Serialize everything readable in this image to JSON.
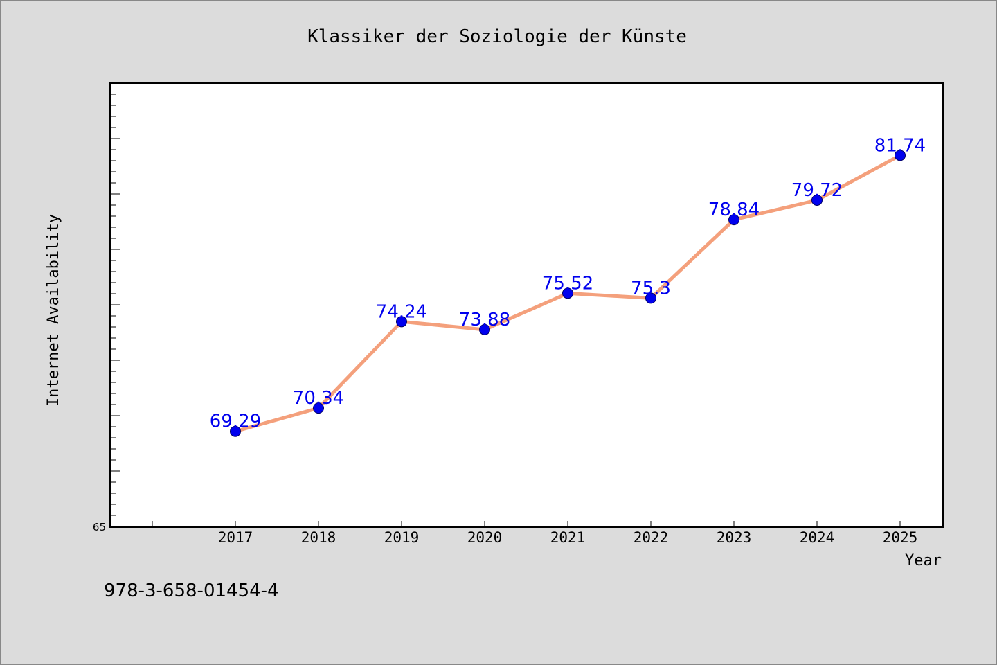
{
  "chart_data": {
    "type": "line",
    "title": "Klassiker der Soziologie der Künste",
    "xlabel": "Year",
    "ylabel": "Internet Availability",
    "categories": [
      "2017",
      "2018",
      "2019",
      "2020",
      "2021",
      "2022",
      "2023",
      "2024",
      "2025"
    ],
    "series": [
      {
        "values": [
          69.29,
          70.34,
          74.24,
          73.88,
          75.52,
          75.3,
          78.84,
          79.72,
          81.74
        ],
        "labels": [
          "69.29",
          "70.34",
          "74.24",
          "73.88",
          "75.52",
          "75.3",
          "78.84",
          "79.72",
          "81.74"
        ]
      }
    ],
    "ylim": [
      65,
      85
    ],
    "ytick_labels": [
      "65"
    ],
    "grid": false,
    "colors": {
      "line": "#f4a07c",
      "marker": "#0000ee",
      "label": "#0000ee"
    }
  },
  "footer": {
    "isbn": "978-3-658-01454-4"
  }
}
